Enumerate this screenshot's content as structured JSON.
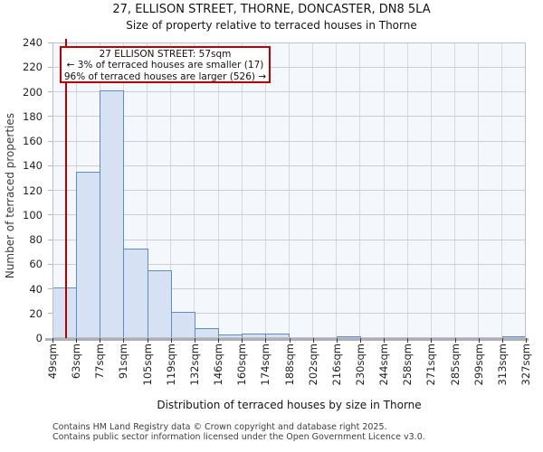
{
  "title": "27, ELLISON STREET, THORNE, DONCASTER, DN8 5LA",
  "subtitle": "Size of property relative to terraced houses in Thorne",
  "chart_data": {
    "type": "bar",
    "bin_edges_sqm": [
      49,
      63,
      77,
      91,
      105,
      119,
      132,
      146,
      160,
      174,
      188,
      202,
      216,
      230,
      244,
      258,
      271,
      285,
      299,
      313,
      327
    ],
    "x_tick_labels": [
      "49sqm",
      "63sqm",
      "77sqm",
      "91sqm",
      "105sqm",
      "119sqm",
      "132sqm",
      "146sqm",
      "160sqm",
      "174sqm",
      "188sqm",
      "202sqm",
      "216sqm",
      "230sqm",
      "244sqm",
      "258sqm",
      "271sqm",
      "285sqm",
      "299sqm",
      "313sqm",
      "327sqm"
    ],
    "values": [
      41,
      135,
      201,
      73,
      55,
      21,
      8,
      3,
      4,
      4,
      0,
      0,
      1,
      0,
      0,
      0,
      0,
      0,
      0,
      1
    ],
    "title": "27, ELLISON STREET, THORNE, DONCASTER, DN8 5LA",
    "subtitle": "Size of property relative to terraced houses in Thorne",
    "xlabel": "Distribution of terraced houses by size in Thorne",
    "ylabel": "Number of terraced properties",
    "ylim": [
      0,
      240
    ],
    "y_ticks": [
      0,
      20,
      40,
      60,
      80,
      100,
      120,
      140,
      160,
      180,
      200,
      220,
      240
    ],
    "grid": true,
    "legend": "none",
    "marker": {
      "value_sqm": 57,
      "label": "27 ELLISON STREET: 57sqm"
    },
    "annotation": {
      "line1": "27 ELLISON STREET: 57sqm",
      "line2": "← 3% of terraced houses are smaller (17)",
      "line3": "96% of terraced houses are larger (526) →"
    },
    "colors": {
      "bar_fill": "#d6e2f4",
      "bar_border": "#5e8cc6",
      "plot_bg": "#f4f7fc",
      "grid_h": "#caced6",
      "grid_v": "#d4d8df",
      "frame": "#bcc0c8",
      "marker_red": "#b20000",
      "annotation_border": "#bb0000"
    }
  },
  "footer": {
    "line1": "Contains HM Land Registry data © Crown copyright and database right 2025.",
    "line2": "Contains public sector information licensed under the Open Government Licence v3.0."
  }
}
